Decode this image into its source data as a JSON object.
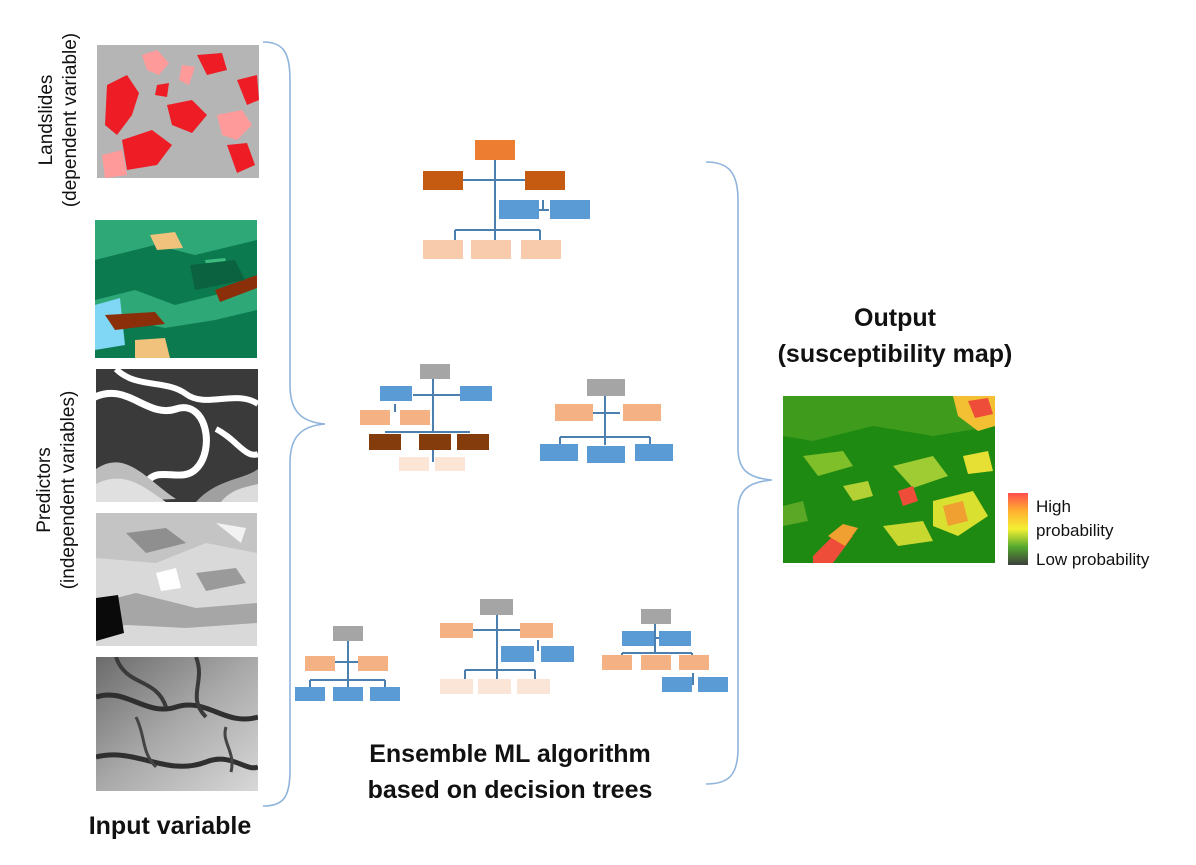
{
  "labels": {
    "landslides": "Landslides",
    "landslides_sub": "(dependent variable)",
    "predictors": "Predictors",
    "predictors_sub": "(independent variables)",
    "input": "Input variable",
    "ensemble_line1": "Ensemble ML algorithm",
    "ensemble_line2": "based on decision trees",
    "output_line1": "Output",
    "output_line2": "(susceptibility map)"
  },
  "legend": {
    "high": "High",
    "probability": "probability",
    "low": "Low probability",
    "colors": [
      "#ff4d4d",
      "#ffb030",
      "#f3f033",
      "#55a82e",
      "#3d3d3d"
    ]
  },
  "colors": {
    "bracket": "#8fb4dc",
    "tree_orange": "#ed7d31",
    "tree_dark_orange": "#c55a11",
    "tree_blue": "#5b9bd5",
    "tree_peach": "#f4b183",
    "tree_light_peach": "#f8cbad",
    "tree_pale": "#fbe5d6",
    "tree_gray": "#a5a5a5",
    "tree_brown": "#843c0c",
    "connector": "#4a7fb0"
  }
}
